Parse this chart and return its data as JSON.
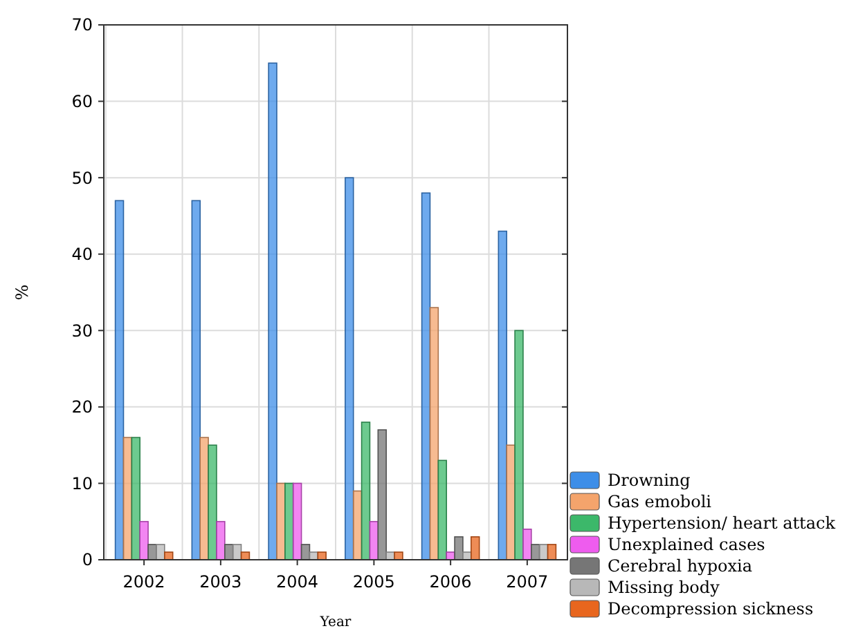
{
  "chart_data": {
    "type": "bar",
    "xlabel": "Year",
    "ylabel": "%",
    "categories": [
      "2002",
      "2003",
      "2004",
      "2005",
      "2006",
      "2007"
    ],
    "series": [
      {
        "name": "Drowning",
        "color": "#3d8ee8",
        "values": [
          47,
          47,
          65,
          50,
          48,
          43
        ]
      },
      {
        "name": "Gas emoboli",
        "color": "#f4a46c",
        "values": [
          16,
          16,
          10,
          9,
          33,
          15
        ]
      },
      {
        "name": "Hypertension/ heart attack",
        "color": "#3cb86a",
        "values": [
          16,
          15,
          10,
          18,
          13,
          30
        ]
      },
      {
        "name": "Unexplained cases",
        "color": "#ee5cee",
        "values": [
          5,
          5,
          10,
          5,
          1,
          4
        ]
      },
      {
        "name": "Cerebral hypoxia",
        "color": "#767676",
        "values": [
          2,
          2,
          2,
          17,
          3,
          2
        ]
      },
      {
        "name": "Missing body",
        "color": "#b8b8b8",
        "values": [
          2,
          2,
          1,
          1,
          1,
          2
        ]
      },
      {
        "name": "Decompression sickness",
        "color": "#e8661e",
        "values": [
          1,
          1,
          1,
          1,
          3,
          2
        ]
      }
    ],
    "ylim": [
      0,
      70
    ],
    "yticks": [
      0,
      10,
      20,
      30,
      40,
      50,
      60,
      70
    ],
    "grid": true,
    "legend": "bottom right"
  }
}
